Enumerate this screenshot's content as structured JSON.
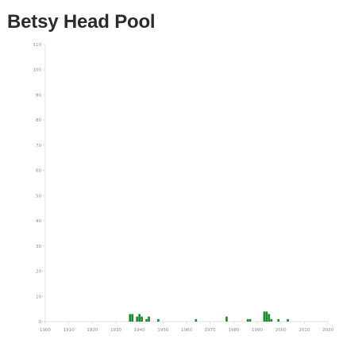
{
  "page": {
    "title": "Betsy Head Pool"
  },
  "chart_data": {
    "type": "bar",
    "title": "Betsy Head Pool",
    "xlabel": "",
    "ylabel": "",
    "xlim": [
      1900,
      2020
    ],
    "ylim": [
      0,
      110
    ],
    "x_ticks": [
      1900,
      1910,
      1920,
      1930,
      1940,
      1950,
      1960,
      1970,
      1980,
      1990,
      2000,
      2010,
      2020
    ],
    "y_ticks": [
      0,
      10,
      20,
      30,
      40,
      50,
      60,
      70,
      80,
      90,
      100,
      110
    ],
    "grid": false,
    "bar_color": "#1e8a2e",
    "x": [
      1936,
      1937,
      1939,
      1940,
      1941,
      1943,
      1944,
      1948,
      1964,
      1977,
      1986,
      1987,
      1993,
      1994,
      1995,
      1996,
      1999,
      2003
    ],
    "values": [
      3,
      3,
      2,
      3,
      2,
      1,
      2,
      1,
      1,
      2,
      1,
      1,
      4,
      4,
      3,
      1,
      1,
      1
    ]
  }
}
